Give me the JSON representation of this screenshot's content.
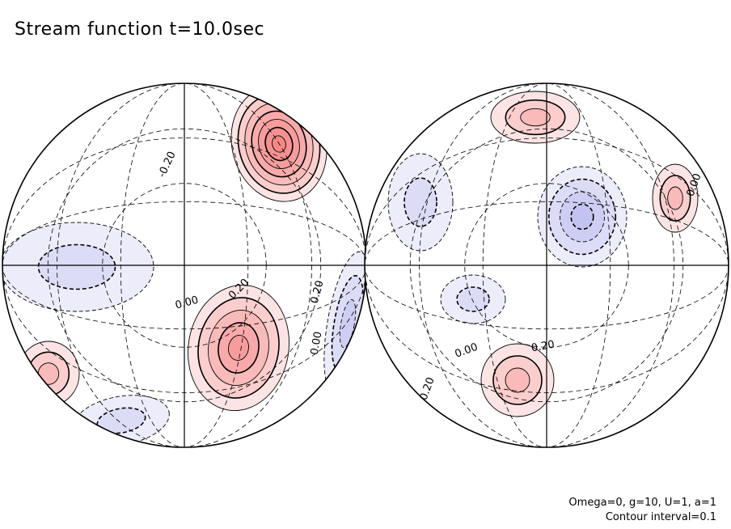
{
  "title": "Stream function t=10.0sec",
  "footer": {
    "params": "Omega=0, g=10, U=1, a=1",
    "interval": "Contour interval=0.1"
  },
  "colors": {
    "positive": "#f05a5a",
    "negative": "#8a8ae8",
    "contour": "#000000",
    "grid": "#000000"
  },
  "chart_data": {
    "type": "contour",
    "projection": "orthographic",
    "field": "Stream function",
    "time_sec": 10.0,
    "contour_interval": 0.1,
    "negative_dashed": true,
    "shading": "red positive, blue negative",
    "hemispheres": [
      {
        "name": "left",
        "contour_labels": [
          "-0.20",
          "0.00",
          "0.20",
          "0.20",
          "0.00"
        ],
        "features": [
          {
            "sign": "positive",
            "peak": 0.7
          },
          {
            "sign": "positive",
            "peak": 0.5
          },
          {
            "sign": "positive",
            "peak": 0.3
          },
          {
            "sign": "negative",
            "peak": -0.2
          },
          {
            "sign": "negative",
            "peak": -0.2
          },
          {
            "sign": "negative",
            "peak": -0.3
          }
        ]
      },
      {
        "name": "right",
        "contour_labels": [
          "0.00",
          "0.00",
          "0.20",
          "0.20"
        ],
        "features": [
          {
            "sign": "negative",
            "peak": -0.4
          },
          {
            "sign": "positive",
            "peak": 0.3
          },
          {
            "sign": "positive",
            "peak": 0.3
          },
          {
            "sign": "positive",
            "peak": 0.25
          },
          {
            "sign": "negative",
            "peak": -0.2
          },
          {
            "sign": "negative",
            "peak": -0.2
          }
        ]
      }
    ]
  }
}
